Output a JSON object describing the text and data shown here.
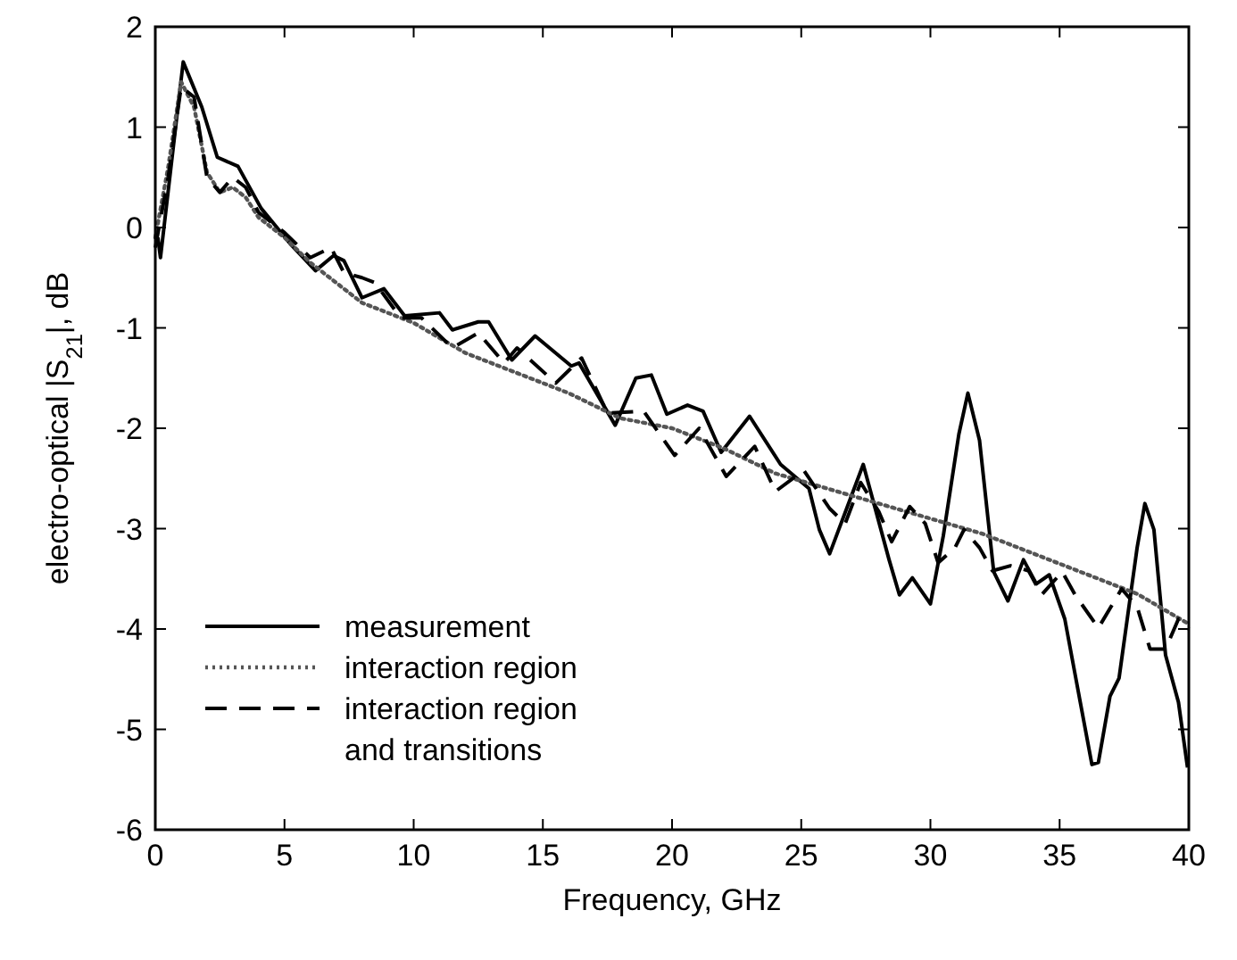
{
  "chart_data": {
    "type": "line",
    "xlabel": "Frequency, GHz",
    "ylabel": "electro-optical |S$_{21}$|, dB",
    "xlim": [
      0,
      40
    ],
    "xticks": [
      0,
      5,
      10,
      15,
      20,
      25,
      30,
      35,
      40
    ],
    "ylim": [
      -6,
      2
    ],
    "yticks": [
      -6,
      -5,
      -4,
      -3,
      -2,
      -1,
      0,
      1,
      2
    ],
    "grid": false,
    "legend": "bottom left",
    "marker": "none",
    "series": [
      {
        "name": "measurement",
        "color": "#000000",
        "line_style": "solid",
        "x": [
          0.1,
          0.2,
          1.08,
          1.8,
          2.4,
          3.2,
          4.1,
          5.25,
          6.2,
          6.9,
          7.3,
          8.0,
          8.85,
          9.65,
          11.0,
          11.5,
          12.5,
          12.9,
          13.8,
          14.7,
          16.1,
          16.4,
          17.8,
          18.6,
          19.2,
          19.8,
          20.6,
          21.2,
          21.9,
          23.0,
          24.2,
          25.3,
          25.7,
          26.1,
          27.4,
          28.4,
          28.8,
          29.3,
          30.0,
          30.5,
          31.1,
          31.45,
          31.9,
          32.45,
          33.0,
          33.6,
          34.1,
          34.6,
          35.2,
          35.8,
          36.25,
          36.5,
          36.95,
          37.3,
          38.0,
          38.3,
          38.65,
          39.1,
          39.6,
          39.95
        ],
        "values": [
          -0.1,
          -0.3,
          1.65,
          1.2,
          0.7,
          0.61,
          0.19,
          -0.17,
          -0.43,
          -0.28,
          -0.33,
          -0.7,
          -0.61,
          -0.88,
          -0.85,
          -1.02,
          -0.94,
          -0.94,
          -1.32,
          -1.08,
          -1.38,
          -1.35,
          -1.97,
          -1.5,
          -1.47,
          -1.86,
          -1.77,
          -1.83,
          -2.24,
          -1.88,
          -2.36,
          -2.6,
          -3.01,
          -3.25,
          -2.36,
          -3.31,
          -3.66,
          -3.49,
          -3.75,
          -3.07,
          -2.06,
          -1.65,
          -2.12,
          -3.43,
          -3.72,
          -3.31,
          -3.55,
          -3.46,
          -3.9,
          -4.73,
          -5.35,
          -5.33,
          -4.67,
          -4.49,
          -3.19,
          -2.75,
          -3.01,
          -4.26,
          -4.73,
          -5.38
        ]
      },
      {
        "name": "interaction region",
        "color": "#555555",
        "line_style": "dotted",
        "x": [
          0,
          0.5,
          1,
          1.5,
          2,
          2.5,
          3,
          3.5,
          4,
          5,
          6,
          7,
          8,
          9,
          10,
          12,
          14,
          16,
          18,
          20,
          22,
          24,
          26,
          28,
          30,
          32,
          34,
          36,
          38,
          40
        ],
        "values": [
          -0.1,
          0.6,
          1.45,
          1.2,
          0.55,
          0.35,
          0.4,
          0.3,
          0.1,
          -0.1,
          -0.35,
          -0.55,
          -0.75,
          -0.85,
          -0.95,
          -1.25,
          -1.45,
          -1.65,
          -1.9,
          -2.0,
          -2.2,
          -2.45,
          -2.6,
          -2.75,
          -2.9,
          -3.05,
          -3.25,
          -3.45,
          -3.65,
          -3.95
        ]
      },
      {
        "name": "interaction region\nand transitions",
        "color": "#000000",
        "line_style": "dashed",
        "x": [
          0,
          0.5,
          1,
          1.5,
          2,
          2.5,
          3,
          3.5,
          4,
          5,
          6,
          6.8,
          7.3,
          8,
          8.5,
          9.5,
          10.3,
          11.5,
          12.5,
          13.5,
          14,
          15.5,
          16.5,
          17.5,
          18.9,
          20.1,
          21.05,
          22.1,
          23.2,
          24.0,
          25.1,
          26.1,
          26.7,
          27.3,
          28.0,
          28.5,
          29.2,
          29.8,
          30.3,
          30.95,
          31.3,
          31.9,
          32.4,
          33.1,
          33.8,
          34.3,
          35.1,
          35.6,
          36.5,
          37.4,
          38.0,
          38.5,
          39.1,
          39.6,
          40
        ],
        "values": [
          -0.2,
          0.5,
          1.4,
          1.3,
          0.5,
          0.35,
          0.5,
          0.4,
          0.15,
          -0.05,
          -0.3,
          -0.2,
          -0.45,
          -0.5,
          -0.55,
          -0.9,
          -0.9,
          -1.2,
          -1.05,
          -1.35,
          -1.2,
          -1.55,
          -1.3,
          -1.85,
          -1.83,
          -2.27,
          -2.0,
          -2.48,
          -2.18,
          -2.63,
          -2.42,
          -2.8,
          -2.95,
          -2.54,
          -2.83,
          -3.13,
          -2.78,
          -2.95,
          -3.34,
          -3.19,
          -3.01,
          -3.19,
          -3.42,
          -3.37,
          -3.42,
          -3.66,
          -3.43,
          -3.66,
          -3.99,
          -3.6,
          -3.78,
          -4.2,
          -4.2,
          -3.9,
          -4.0
        ]
      }
    ]
  }
}
